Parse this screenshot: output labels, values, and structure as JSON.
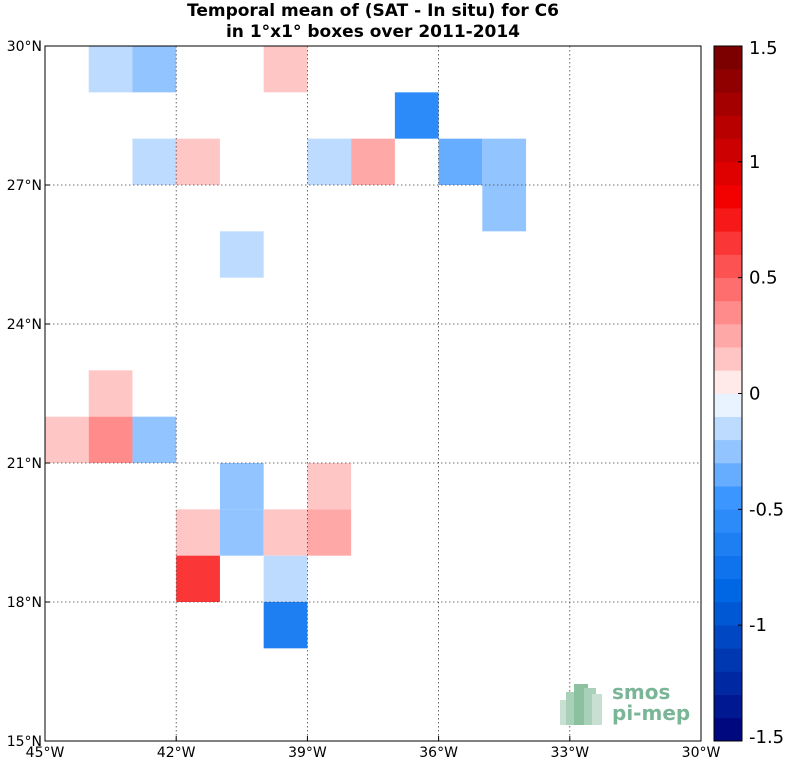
{
  "chart_data": {
    "type": "heatmap",
    "title": [
      "Temporal mean of (SAT - In situ) for C6",
      "in 1°x1° boxes over 2011-2014"
    ],
    "x_range": [
      -45,
      -30
    ],
    "y_range": [
      15,
      30
    ],
    "grid": true,
    "x_ticks": [
      {
        "value": -45,
        "label": "45°W"
      },
      {
        "value": -42,
        "label": "42°W"
      },
      {
        "value": -39,
        "label": "39°W"
      },
      {
        "value": -36,
        "label": "36°W"
      },
      {
        "value": -33,
        "label": "33°W"
      },
      {
        "value": -30,
        "label": "30°W"
      }
    ],
    "y_ticks": [
      {
        "value": 15,
        "label": "15°N"
      },
      {
        "value": 18,
        "label": "18°N"
      },
      {
        "value": 21,
        "label": "21°N"
      },
      {
        "value": 24,
        "label": "24°N"
      },
      {
        "value": 27,
        "label": "27°N"
      },
      {
        "value": 30,
        "label": "30°N"
      }
    ],
    "colorbar": {
      "min": -1.5,
      "max": 1.5,
      "levels": 30,
      "ticks": [
        {
          "value": 1.5,
          "label": "1.5"
        },
        {
          "value": 1,
          "label": "1"
        },
        {
          "value": 0.5,
          "label": "0.5"
        },
        {
          "value": 0,
          "label": "0"
        },
        {
          "value": -0.5,
          "label": "-0.5"
        },
        {
          "value": -1,
          "label": "-1"
        },
        {
          "value": -1.5,
          "label": "-1.5"
        }
      ]
    },
    "cells": [
      {
        "lon": -44,
        "lat": 29,
        "value": -0.15
      },
      {
        "lon": -43,
        "lat": 29,
        "value": -0.25
      },
      {
        "lon": -40,
        "lat": 29,
        "value": 0.15
      },
      {
        "lon": -37,
        "lat": 28,
        "value": -0.55
      },
      {
        "lon": -43,
        "lat": 27,
        "value": -0.15
      },
      {
        "lon": -42,
        "lat": 27,
        "value": 0.15
      },
      {
        "lon": -39,
        "lat": 27,
        "value": -0.15
      },
      {
        "lon": -38,
        "lat": 27,
        "value": 0.25
      },
      {
        "lon": -36,
        "lat": 27,
        "value": -0.35
      },
      {
        "lon": -35,
        "lat": 27,
        "value": -0.25
      },
      {
        "lon": -35,
        "lat": 26,
        "value": -0.25
      },
      {
        "lon": -41,
        "lat": 25,
        "value": -0.15
      },
      {
        "lon": -44,
        "lat": 22,
        "value": 0.15
      },
      {
        "lon": -45,
        "lat": 21,
        "value": 0.15
      },
      {
        "lon": -44,
        "lat": 21,
        "value": 0.35
      },
      {
        "lon": -43,
        "lat": 21,
        "value": -0.25
      },
      {
        "lon": -41,
        "lat": 20,
        "value": -0.25
      },
      {
        "lon": -39,
        "lat": 20,
        "value": 0.15
      },
      {
        "lon": -42,
        "lat": 19,
        "value": 0.15
      },
      {
        "lon": -41,
        "lat": 19,
        "value": -0.25
      },
      {
        "lon": -40,
        "lat": 19,
        "value": 0.15
      },
      {
        "lon": -39,
        "lat": 19,
        "value": 0.25
      },
      {
        "lon": -42,
        "lat": 18,
        "value": 0.65
      },
      {
        "lon": -40,
        "lat": 18,
        "value": -0.15
      },
      {
        "lon": -40,
        "lat": 17,
        "value": -0.65
      }
    ]
  },
  "watermark": {
    "line1": "smos",
    "line2": "pi-mep"
  }
}
